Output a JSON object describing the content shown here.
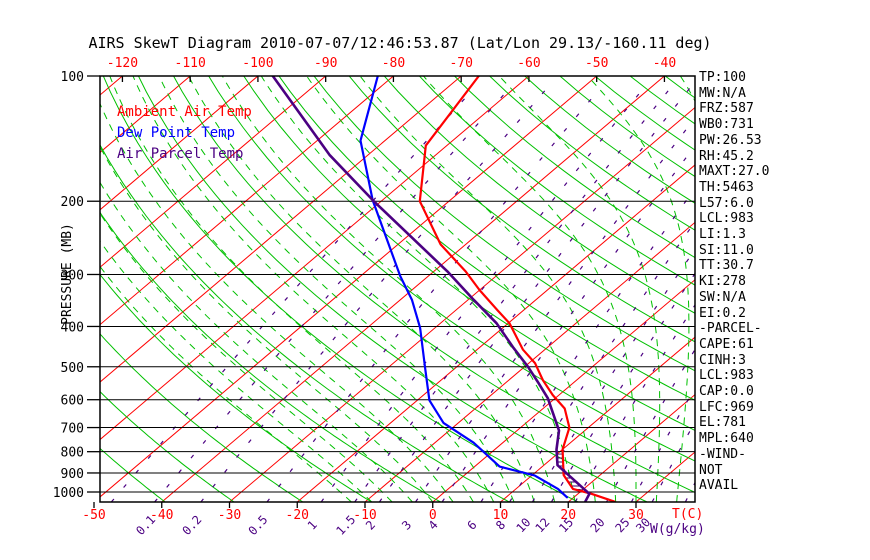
{
  "title": "AIRS SkewT Diagram 2010-07-07/12:46:53.87 (Lat/Lon 29.13/-160.11 deg)",
  "legend": [
    {
      "label": "Ambient Air Temp",
      "color": "#ff0000"
    },
    {
      "label": "Dew Point Temp",
      "color": "#0000ff"
    },
    {
      "label": "Air Parcel Temp",
      "color": "#4b0082"
    }
  ],
  "axes": {
    "pressure_label": "PRESSURE (MB)",
    "pressure_ticks": [
      100,
      200,
      300,
      400,
      500,
      600,
      700,
      800,
      900,
      1000
    ],
    "top_temp_ticks": [
      -120,
      -110,
      -100,
      -90,
      -80,
      -70,
      -60,
      -50,
      -40
    ],
    "bottom_temp_ticks": [
      -50,
      -40,
      -30,
      -20,
      -10,
      0,
      10,
      20,
      30
    ],
    "temp_label": "T(C)",
    "mixing_label": "W(g/kg)",
    "mixing_ratio_labels": [
      0.1,
      0.2,
      0.5,
      1,
      1.5,
      2,
      3,
      4,
      6,
      8,
      10,
      12,
      15,
      20,
      25,
      30
    ]
  },
  "stats": [
    "TP:100",
    "MW:N/A",
    "FRZ:587",
    "WB0:731",
    "PW:26.53",
    "RH:45.2",
    "MAXT:27.0",
    "TH:5463",
    "L57:6.0",
    "LCL:983",
    "LI:1.3",
    "SI:11.0",
    "TT:30.7",
    "KI:278",
    "SW:N/A",
    "EI:0.2",
    "-PARCEL-",
    "CAPE:61",
    "CINH:3",
    "LCL:983",
    "CAP:0.0",
    "LFC:969",
    "EL:781",
    "MPL:640",
    "-WIND-",
    "NOT",
    "AVAIL"
  ],
  "colors": {
    "frame": "#000000",
    "isotherm": "#ff0000",
    "dry_adiabat": "#00c000",
    "moist_adiabat": "#00c000",
    "mixing_ratio": "#4b0082",
    "temp_curve": "#ff0000",
    "dewpoint_curve": "#0000ff",
    "parcel_curve": "#4b0082",
    "hatch": "#330066"
  },
  "chart_data": {
    "type": "skewt",
    "y_scale": "log10(pressure)",
    "pressure_range_hpa": [
      100,
      1057
    ],
    "temp_axis_range_c": [
      -160,
      40
    ],
    "series": [
      {
        "name": "Ambient Air Temp",
        "color": "#ff0000",
        "points": [
          {
            "p": 1055,
            "t": 26.8
          },
          {
            "p": 1010,
            "t": 22.0
          },
          {
            "p": 983,
            "t": 18.4
          },
          {
            "p": 910,
            "t": 14.6
          },
          {
            "p": 790,
            "t": 10.0
          },
          {
            "p": 700,
            "t": 7.2
          },
          {
            "p": 630,
            "t": 3.2
          },
          {
            "p": 585,
            "t": -0.9
          },
          {
            "p": 538,
            "t": -5.0
          },
          {
            "p": 490,
            "t": -9.1
          },
          {
            "p": 455,
            "t": -13.2
          },
          {
            "p": 393,
            "t": -19.8
          },
          {
            "p": 366,
            "t": -23.8
          },
          {
            "p": 327,
            "t": -30.0
          },
          {
            "p": 295,
            "t": -35.3
          },
          {
            "p": 254,
            "t": -43.7
          },
          {
            "p": 200,
            "t": -54.3
          },
          {
            "p": 147,
            "t": -63.1
          },
          {
            "p": 100,
            "t": -67.4
          }
        ]
      },
      {
        "name": "Dew Point Temp",
        "color": "#0000ff",
        "points": [
          {
            "p": 1030,
            "t": 19.0
          },
          {
            "p": 983,
            "t": 16.2
          },
          {
            "p": 912,
            "t": 10.4
          },
          {
            "p": 869,
            "t": 3.7
          },
          {
            "p": 761,
            "t": -4.3
          },
          {
            "p": 682,
            "t": -12.2
          },
          {
            "p": 602,
            "t": -18.2
          },
          {
            "p": 503,
            "t": -24.5
          },
          {
            "p": 403,
            "t": -32.2
          },
          {
            "p": 345,
            "t": -38.3
          },
          {
            "p": 303,
            "t": -44.1
          },
          {
            "p": 199,
            "t": -61.4
          },
          {
            "p": 143,
            "t": -73.6
          },
          {
            "p": 100,
            "t": -82.3
          }
        ]
      },
      {
        "name": "Air Parcel Temp",
        "color": "#4b0082",
        "points": [
          {
            "p": 1052,
            "t": 22.4
          },
          {
            "p": 1010,
            "t": 21.7
          },
          {
            "p": 862,
            "t": 12.0
          },
          {
            "p": 790,
            "t": 9.1
          },
          {
            "p": 712,
            "t": 6.2
          },
          {
            "p": 595,
            "t": -1.1
          },
          {
            "p": 546,
            "t": -5.2
          },
          {
            "p": 500,
            "t": -9.5
          },
          {
            "p": 448,
            "t": -15.2
          },
          {
            "p": 393,
            "t": -21.7
          },
          {
            "p": 345,
            "t": -29.2
          },
          {
            "p": 295,
            "t": -38.0
          },
          {
            "p": 201,
            "t": -60.8
          },
          {
            "p": 155,
            "t": -75.6
          },
          {
            "p": 100,
            "t": -97.8
          }
        ]
      }
    ],
    "background": {
      "isotherms": {
        "min_c": -160,
        "max_c": 40,
        "step_c": 10
      },
      "dry_adiabats": {
        "theta_k_min": 190,
        "theta_k_max": 460,
        "step_k": 10
      },
      "moist_adiabats": {
        "surface_t_min_c": -12,
        "surface_t_max_c": 39,
        "step_c": 3
      },
      "mixing_ratio": {
        "values_gkg": [
          0.05,
          0.1,
          0.2,
          0.5,
          1,
          1.5,
          2,
          3,
          4,
          6,
          8,
          10,
          12,
          15,
          20,
          25,
          30,
          40
        ]
      }
    },
    "cape_hatch": {
      "p_bottom": 985,
      "p_top": 810
    }
  }
}
